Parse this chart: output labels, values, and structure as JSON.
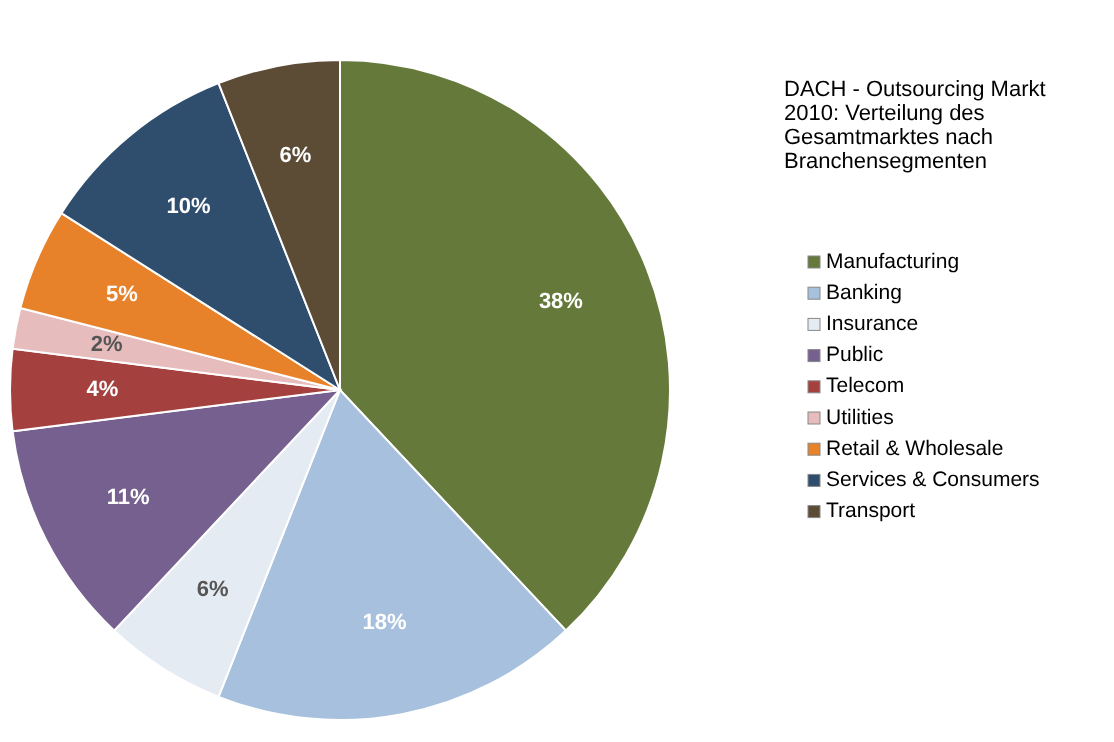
{
  "chart_data": {
    "type": "pie",
    "title": "DACH - Outsourcing Markt 2010: Verteilung des Gesamtmarktes nach Branchensegmenten",
    "categories": [
      "Manufacturing",
      "Banking",
      "Insurance",
      "Public",
      "Telecom",
      "Utilities",
      "Retail & Wholesale",
      "Services & Consumers",
      "Transport"
    ],
    "values": [
      38,
      18,
      6,
      11,
      4,
      2,
      5,
      10,
      6
    ],
    "value_labels": [
      "38%",
      "18%",
      "6%",
      "11%",
      "4%",
      "2%",
      "5%",
      "10%",
      "6%"
    ],
    "colors": [
      "#65793a",
      "#a7c0dd",
      "#e4ebf3",
      "#76608f",
      "#a4413f",
      "#e7bcbc",
      "#e8822a",
      "#2f4e6e",
      "#5c4b35"
    ],
    "legend": "right"
  }
}
